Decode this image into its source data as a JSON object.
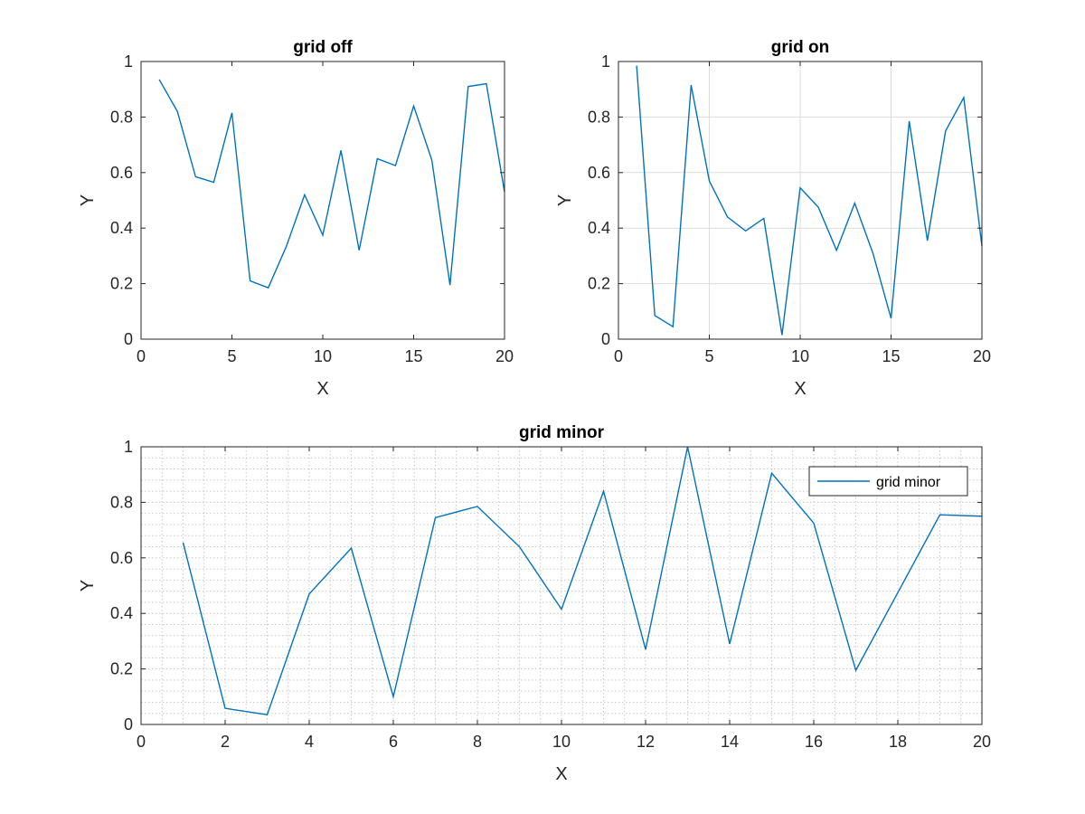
{
  "chart_data": [
    {
      "type": "line",
      "title": "grid off",
      "xlabel": "X",
      "ylabel": "Y",
      "xlim": [
        0,
        20
      ],
      "ylim": [
        0,
        1
      ],
      "xticks": [
        0,
        5,
        10,
        15,
        20
      ],
      "yticks": [
        0,
        0.2,
        0.4,
        0.6,
        0.8,
        1
      ],
      "xtick_labels": [
        "0",
        "5",
        "10",
        "15",
        "20"
      ],
      "ytick_labels": [
        "0",
        "0.2",
        "0.4",
        "0.6",
        "0.8",
        "1"
      ],
      "grid": "off",
      "color": "#0072BD",
      "series": [
        {
          "x": [
            1,
            2,
            3,
            4,
            5,
            6,
            7,
            8,
            9,
            10,
            11,
            12,
            13,
            14,
            15,
            16,
            17,
            18,
            19,
            20
          ],
          "values": [
            0.935,
            0.82,
            0.585,
            0.565,
            0.815,
            0.21,
            0.185,
            0.335,
            0.52,
            0.375,
            0.68,
            0.32,
            0.65,
            0.625,
            0.84,
            0.645,
            0.195,
            0.91,
            0.92,
            0.53
          ]
        }
      ]
    },
    {
      "type": "line",
      "title": "grid on",
      "xlabel": "X",
      "ylabel": "Y",
      "xlim": [
        0,
        20
      ],
      "ylim": [
        0,
        1
      ],
      "xticks": [
        0,
        5,
        10,
        15,
        20
      ],
      "yticks": [
        0,
        0.2,
        0.4,
        0.6,
        0.8,
        1
      ],
      "xtick_labels": [
        "0",
        "5",
        "10",
        "15",
        "20"
      ],
      "ytick_labels": [
        "0",
        "0.2",
        "0.4",
        "0.6",
        "0.8",
        "1"
      ],
      "grid": "on",
      "color": "#0072BD",
      "series": [
        {
          "x": [
            1,
            2,
            3,
            4,
            5,
            6,
            7,
            8,
            9,
            10,
            11,
            12,
            13,
            14,
            15,
            16,
            17,
            18,
            19,
            20
          ],
          "values": [
            0.985,
            0.085,
            0.045,
            0.915,
            0.57,
            0.44,
            0.39,
            0.435,
            0.015,
            0.545,
            0.475,
            0.32,
            0.49,
            0.31,
            0.075,
            0.785,
            0.355,
            0.75,
            0.87,
            0.335
          ]
        }
      ]
    },
    {
      "type": "line",
      "title": "grid minor",
      "xlabel": "X",
      "ylabel": "Y",
      "xlim": [
        0,
        20
      ],
      "ylim": [
        0,
        1
      ],
      "xticks": [
        0,
        2,
        4,
        6,
        8,
        10,
        12,
        14,
        16,
        18,
        20
      ],
      "yticks": [
        0,
        0.2,
        0.4,
        0.6,
        0.8,
        1
      ],
      "xtick_labels": [
        "0",
        "2",
        "4",
        "6",
        "8",
        "10",
        "12",
        "14",
        "16",
        "18",
        "20"
      ],
      "ytick_labels": [
        "0",
        "0.2",
        "0.4",
        "0.6",
        "0.8",
        "1"
      ],
      "grid": "minor",
      "legend_position": "top-right",
      "color": "#0072BD",
      "series": [
        {
          "name": "grid minor",
          "x": [
            1,
            2,
            3,
            4,
            5,
            6,
            7,
            8,
            9,
            10,
            11,
            12,
            13,
            14,
            15,
            16,
            17,
            18,
            19,
            20
          ],
          "values": [
            0.655,
            0.058,
            0.035,
            0.47,
            0.635,
            0.1,
            0.745,
            0.785,
            0.64,
            0.415,
            0.84,
            0.27,
            1.0,
            0.29,
            0.905,
            0.725,
            0.195,
            0.475,
            0.755,
            0.75
          ]
        }
      ]
    }
  ]
}
